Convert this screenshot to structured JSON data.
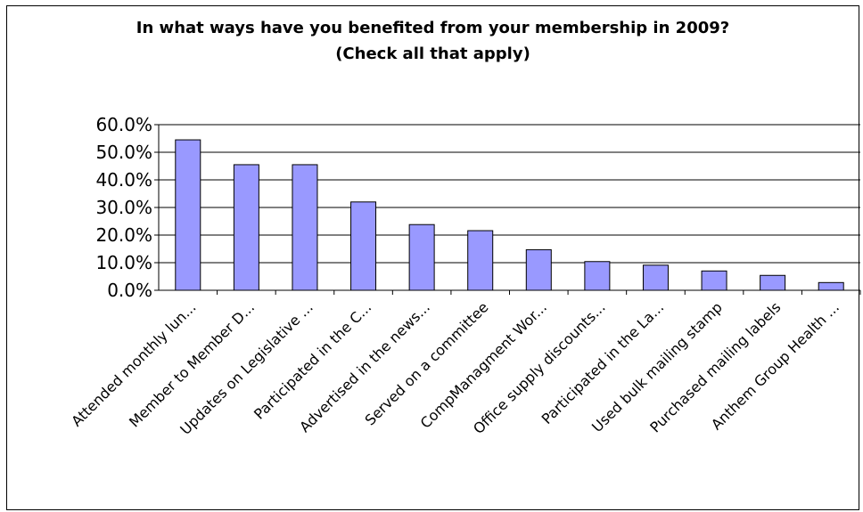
{
  "chart_data": {
    "type": "bar",
    "title_lines": [
      "In what ways have you benefited from your membership in 2009?",
      "(Check all that apply)"
    ],
    "categories": [
      "Attended monthly lun...",
      "Member to Member D...",
      "Updates on Legislative ...",
      "Participated in the C...",
      "Advertised in the news...",
      "Served on a committee",
      "CompManagment Wor...",
      "Office supply discounts...",
      "Participated in the La...",
      "Used bulk mailing stamp",
      "Purchased mailing labels",
      "Anthem Group Health ..."
    ],
    "values": [
      54.5,
      45.5,
      45.5,
      32.0,
      23.8,
      21.6,
      14.7,
      10.4,
      9.1,
      7.0,
      5.4,
      2.8
    ],
    "ylim": [
      0,
      60
    ],
    "yticks": [
      "0.0%",
      "10.0%",
      "20.0%",
      "30.0%",
      "40.0%",
      "50.0%",
      "60.0%"
    ],
    "grid": true,
    "bar_color": "#9999ff"
  }
}
